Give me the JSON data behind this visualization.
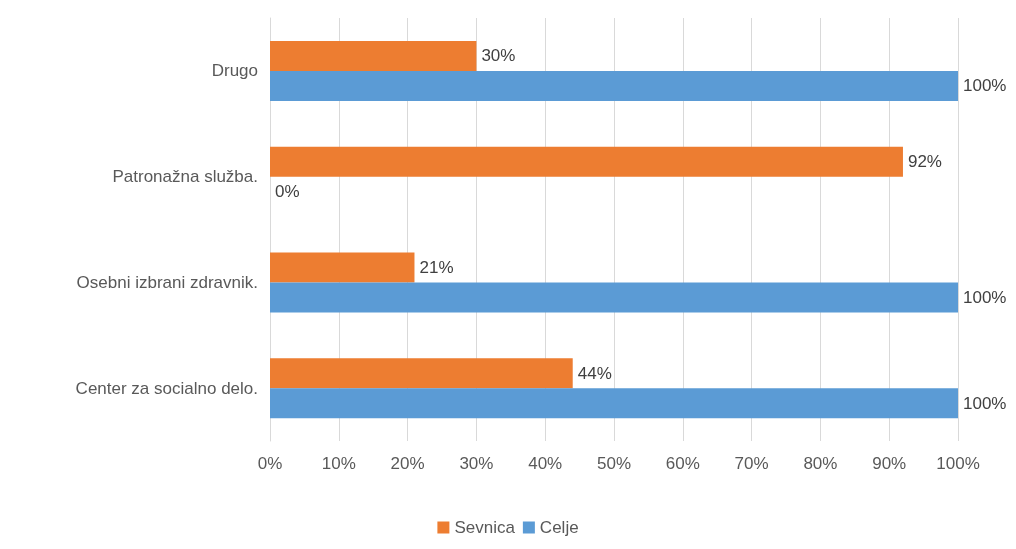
{
  "chart_data": {
    "type": "bar",
    "orientation": "horizontal",
    "categories": [
      "Drugo",
      "Patronažna služba.",
      "Osebni izbrani zdravnik.",
      "Center za socialno delo."
    ],
    "series": [
      {
        "name": "Sevnica",
        "color": "#ed7d31",
        "values": [
          30,
          92,
          21,
          44
        ],
        "value_labels": [
          "30%",
          "92%",
          "21%",
          "44%"
        ]
      },
      {
        "name": "Celje",
        "color": "#5b9bd5",
        "values": [
          100,
          0,
          100,
          100
        ],
        "value_labels": [
          "100%",
          "0%",
          "100%",
          "100%"
        ]
      }
    ],
    "xlim": [
      0,
      100
    ],
    "xticks": [
      {
        "value": 0,
        "label": "0%"
      },
      {
        "value": 10,
        "label": "10%"
      },
      {
        "value": 20,
        "label": "20%"
      },
      {
        "value": 30,
        "label": "30%"
      },
      {
        "value": 40,
        "label": "40%"
      },
      {
        "value": 50,
        "label": "50%"
      },
      {
        "value": 60,
        "label": "60%"
      },
      {
        "value": 70,
        "label": "70%"
      },
      {
        "value": 80,
        "label": "80%"
      },
      {
        "value": 90,
        "label": "90%"
      },
      {
        "value": 100,
        "label": "100%"
      }
    ],
    "grid": "x",
    "legend": "bottom"
  }
}
